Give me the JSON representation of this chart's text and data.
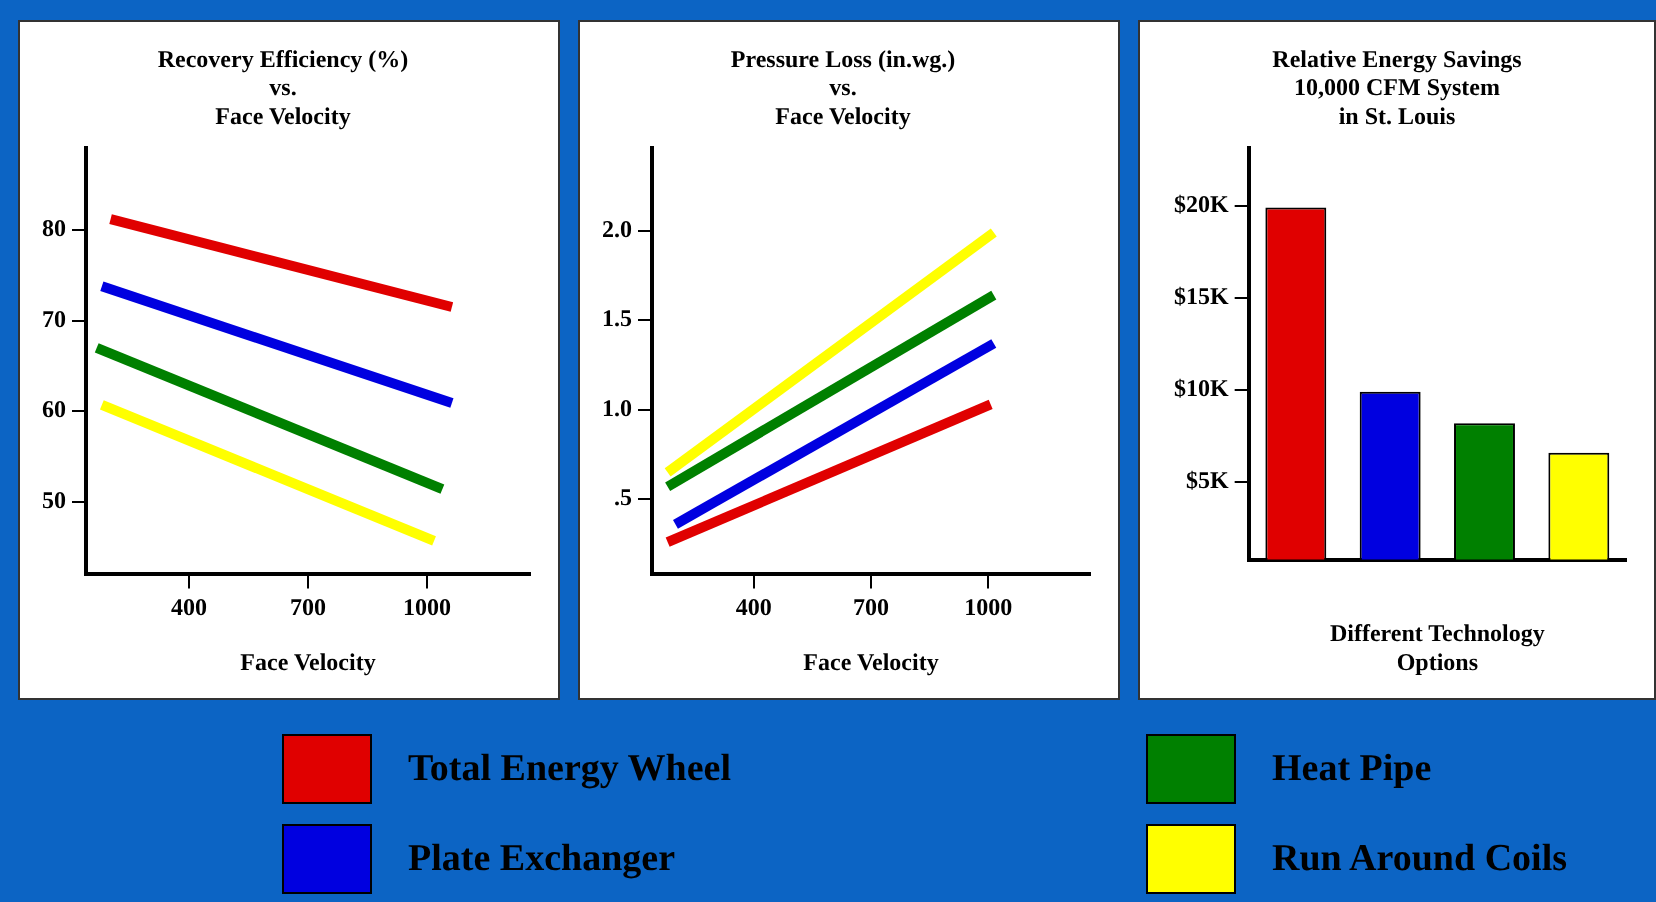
{
  "chart_data": [
    {
      "type": "line",
      "title": "Recovery Efficiency (%)\nvs.\nFace Velocity",
      "xlabel": "Face Velocity",
      "xlim": [
        140,
        1260
      ],
      "xticks": [
        400,
        700,
        1000
      ],
      "ylim": [
        42,
        89
      ],
      "yticks": [
        50,
        60,
        70,
        80
      ],
      "grid": false,
      "legend": "bottom",
      "marker": "none",
      "line_style": "solid",
      "series": [
        {
          "name": "Total Energy Wheel",
          "color": "#e00000",
          "x": [
            202,
            1063
          ],
          "values": [
            81.2,
            71.5
          ]
        },
        {
          "name": "Plate Exchanger",
          "color": "#0000e0",
          "x": [
            180,
            1063
          ],
          "values": [
            73.8,
            60.9
          ]
        },
        {
          "name": "Heat Pipe",
          "color": "#008000",
          "x": [
            167,
            1039
          ],
          "values": [
            67.0,
            51.4
          ]
        },
        {
          "name": "Run Around Coils",
          "color": "#ffff00",
          "x": [
            180,
            1018
          ],
          "values": [
            60.7,
            45.7
          ]
        }
      ]
    },
    {
      "type": "line",
      "title": "Pressure Loss (in.wg.)\nvs.\nFace Velocity",
      "xlabel": "Face Velocity",
      "xlim": [
        140,
        1260
      ],
      "xticks": [
        400,
        700,
        1000
      ],
      "ylim": [
        0.08,
        2.46
      ],
      "yticks": [
        {
          "value": 0.5,
          "label": ".5"
        },
        {
          "value": 1.0,
          "label": "1.0"
        },
        1.5,
        {
          "value": 2.0,
          "label": "2.0"
        }
      ],
      "grid": false,
      "marker": "none",
      "line_style": "solid",
      "series": [
        {
          "color": "#e00000",
          "x": [
            180,
            1006
          ],
          "values": [
            0.26,
            1.03
          ]
        },
        {
          "color": "#0000e0",
          "x": [
            200,
            1014
          ],
          "values": [
            0.36,
            1.37
          ]
        },
        {
          "color": "#008000",
          "x": [
            180,
            1014
          ],
          "values": [
            0.57,
            1.64
          ]
        },
        {
          "color": "#ffff00",
          "x": [
            180,
            1014
          ],
          "values": [
            0.65,
            1.99
          ]
        }
      ]
    },
    {
      "type": "bar",
      "title": "Relative Energy Savings\n10,000 CFM System\nin St. Louis",
      "xlabel": "Different Technology\nOptions",
      "categories": [
        null,
        null,
        null,
        null
      ],
      "values": [
        19.9,
        9.9,
        8.2,
        6.6
      ],
      "colors": [
        "#e00000",
        "#0000e0",
        "#008000",
        "#ffff00"
      ],
      "ylim": [
        0.8,
        23.1
      ],
      "yticks": [
        {
          "value": 5,
          "label": "$5K"
        },
        {
          "value": 10,
          "label": "$10K"
        },
        {
          "value": 15,
          "label": "$15K"
        },
        {
          "value": 20,
          "label": "$20K"
        }
      ],
      "grid": false
    }
  ]
}
